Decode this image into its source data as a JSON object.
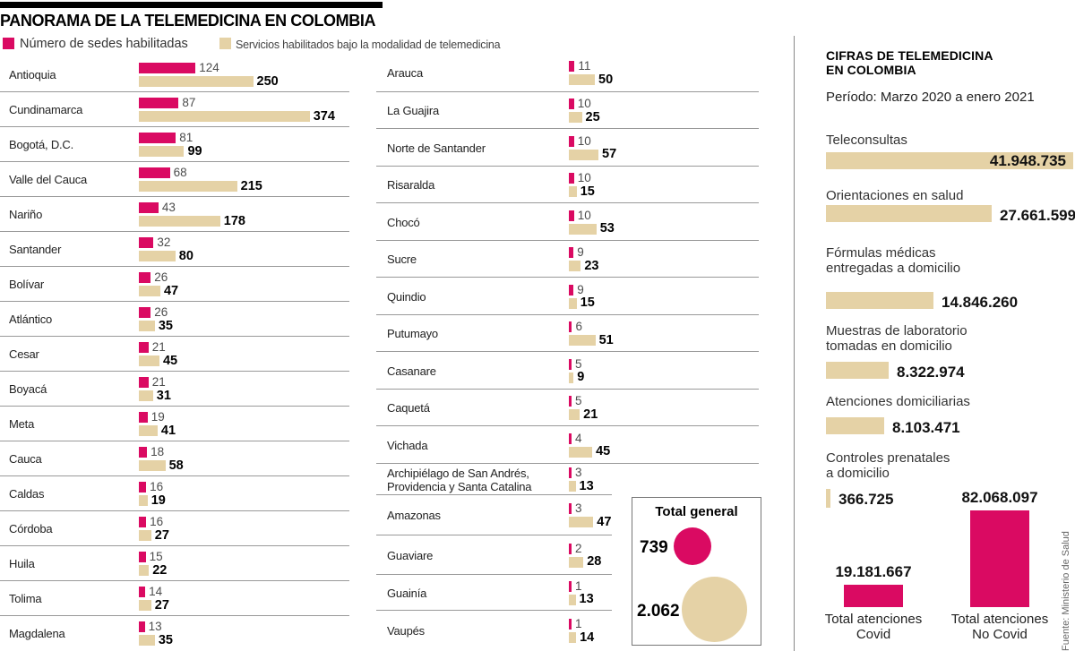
{
  "title": "PANORAMA DE LA TELEMEDICINA EN COLOMBIA",
  "colors": {
    "pink": "#da0a62",
    "beige": "#e5d2a6"
  },
  "legend": [
    {
      "label": "Número de sedes habilitadas",
      "color": "#da0a62"
    },
    {
      "label": "Servicios habilitados bajo la modalidad de telemedicina",
      "color": "#e5d2a6"
    }
  ],
  "right_panel": {
    "title_lines": [
      "CIFRAS DE TELEMEDICINA",
      "EN COLOMBIA"
    ],
    "period": "Período: Marzo 2020 a enero 2021"
  },
  "source": "Fuente: Ministerio de Salud",
  "chart_data": [
    {
      "type": "bar",
      "orientation": "horizontal",
      "title": "PANORAMA DE LA TELEMEDICINA EN COLOMBIA",
      "series_names": [
        "Número de sedes habilitadas",
        "Servicios habilitados bajo la modalidad de telemedicina"
      ],
      "columns": [
        {
          "rows": [
            {
              "label": "Antioquia",
              "sedes": 124,
              "servicios": 250
            },
            {
              "label": "Cundinamarca",
              "sedes": 87,
              "servicios": 374
            },
            {
              "label": "Bogotá, D.C.",
              "sedes": 81,
              "servicios": 99
            },
            {
              "label": "Valle del Cauca",
              "sedes": 68,
              "servicios": 215
            },
            {
              "label": "Nariño",
              "sedes": 43,
              "servicios": 178
            },
            {
              "label": "Santander",
              "sedes": 32,
              "servicios": 80
            },
            {
              "label": "Bolívar",
              "sedes": 26,
              "servicios": 47
            },
            {
              "label": "Atlántico",
              "sedes": 26,
              "servicios": 35
            },
            {
              "label": "Cesar",
              "sedes": 21,
              "servicios": 45
            },
            {
              "label": "Boyacá",
              "sedes": 21,
              "servicios": 31
            },
            {
              "label": "Meta",
              "sedes": 19,
              "servicios": 41
            },
            {
              "label": "Cauca",
              "sedes": 18,
              "servicios": 58
            },
            {
              "label": "Caldas",
              "sedes": 16,
              "servicios": 19
            },
            {
              "label": "Córdoba",
              "sedes": 16,
              "servicios": 27
            },
            {
              "label": "Huila",
              "sedes": 15,
              "servicios": 22
            },
            {
              "label": "Tolima",
              "sedes": 14,
              "servicios": 27
            },
            {
              "label": "Magdalena",
              "sedes": 13,
              "servicios": 35
            }
          ]
        },
        {
          "rows": [
            {
              "label": "Arauca",
              "sedes": 11,
              "servicios": 50
            },
            {
              "label": "La Guajira",
              "sedes": 10,
              "servicios": 25
            },
            {
              "label": "Norte de Santander",
              "sedes": 10,
              "servicios": 57
            },
            {
              "label": "Risaralda",
              "sedes": 10,
              "servicios": 15
            },
            {
              "label": "Chocó",
              "sedes": 10,
              "servicios": 53
            },
            {
              "label": "Sucre",
              "sedes": 9,
              "servicios": 23
            },
            {
              "label": "Quindio",
              "sedes": 9,
              "servicios": 15
            },
            {
              "label": "Putumayo",
              "sedes": 6,
              "servicios": 51
            },
            {
              "label": "Casanare",
              "sedes": 5,
              "servicios": 9
            },
            {
              "label": "Caquetá",
              "sedes": 5,
              "servicios": 21
            },
            {
              "label": "Vichada",
              "sedes": 4,
              "servicios": 45
            },
            {
              "label": "Archipiélago de San Andrés, Providencia y Santa Catalina",
              "sedes": 3,
              "servicios": 13
            },
            {
              "label": "Amazonas",
              "sedes": 3,
              "servicios": 47
            },
            {
              "label": "Guaviare",
              "sedes": 2,
              "servicios": 28
            },
            {
              "label": "Guainía",
              "sedes": 1,
              "servicios": 13
            },
            {
              "label": "Vaupés",
              "sedes": 1,
              "servicios": 14
            }
          ]
        }
      ]
    },
    {
      "type": "bubble",
      "title": "Total general",
      "items": [
        {
          "label": "Número de sedes habilitadas",
          "value": 739,
          "display": "739",
          "color": "#da0a62"
        },
        {
          "label": "Servicios habilitados bajo la modalidad de telemedicina",
          "value": 2062,
          "display": "2.062",
          "color": "#e5d2a6"
        }
      ]
    },
    {
      "type": "bar",
      "orientation": "horizontal",
      "title": "CIFRAS DE TELEMEDICINA EN COLOMBIA",
      "subtitle": "Período: Marzo 2020 a enero 2021",
      "items": [
        {
          "label": [
            "Teleconsultas"
          ],
          "value": 41948735,
          "display": "41.948.735"
        },
        {
          "label": [
            "Orientaciones en salud"
          ],
          "value": 27661599,
          "display": "27.661.599"
        },
        {
          "label": [
            "Fórmulas médicas",
            "entregadas a domicilio"
          ],
          "value": 14846260,
          "display": "14.846.260"
        },
        {
          "label": [
            "Muestras de laboratorio",
            "tomadas en domicilio"
          ],
          "value": 8322974,
          "display": "8.322.974"
        },
        {
          "label": [
            "Atenciones domiciliarias"
          ],
          "value": 8103471,
          "display": "8.103.471"
        },
        {
          "label": [
            "Controles prenatales",
            "a domicilio"
          ],
          "value": 366725,
          "display": "366.725"
        }
      ]
    },
    {
      "type": "bar",
      "orientation": "vertical",
      "items": [
        {
          "label": [
            "Total atenciones",
            "Covid"
          ],
          "value": 19181667,
          "display": "19.181.667"
        },
        {
          "label": [
            "Total atenciones",
            "No Covid"
          ],
          "value": 82068097,
          "display": "82.068.097"
        }
      ]
    }
  ]
}
